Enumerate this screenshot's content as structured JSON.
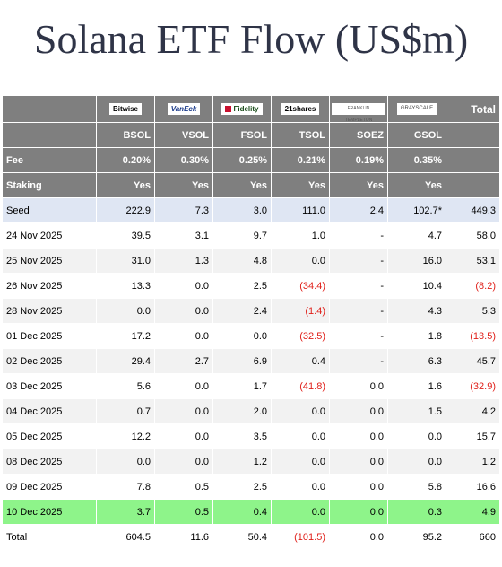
{
  "title": "Solana ETF Flow (US$m)",
  "issuers": [
    {
      "logo": "Bitwise",
      "ticker": "BSOL",
      "fee": "0.20%",
      "staking": "Yes"
    },
    {
      "logo": "VanEck",
      "ticker": "VSOL",
      "fee": "0.30%",
      "staking": "Yes"
    },
    {
      "logo": "Fidelity",
      "ticker": "FSOL",
      "fee": "0.25%",
      "staking": "Yes"
    },
    {
      "logo": "21shares",
      "ticker": "TSOL",
      "fee": "0.21%",
      "staking": "Yes"
    },
    {
      "logo": "FRANKLIN TEMPLETON",
      "ticker": "SOEZ",
      "fee": "0.19%",
      "staking": "Yes"
    },
    {
      "logo": "GRAYSCALE",
      "ticker": "GSOL",
      "fee": "0.35%",
      "staking": "Yes"
    }
  ],
  "header": {
    "total": "Total",
    "fee_label": "Fee",
    "staking_label": "Staking"
  },
  "rows": [
    {
      "label": "Seed",
      "values": [
        "222.9",
        "7.3",
        "3.0",
        "111.0",
        "2.4",
        "102.7*",
        "449.3"
      ]
    },
    {
      "label": "24 Nov 2025",
      "values": [
        "39.5",
        "3.1",
        "9.7",
        "1.0",
        "-",
        "4.7",
        "58.0"
      ]
    },
    {
      "label": "25 Nov 2025",
      "values": [
        "31.0",
        "1.3",
        "4.8",
        "0.0",
        "-",
        "16.0",
        "53.1"
      ]
    },
    {
      "label": "26 Nov 2025",
      "values": [
        "13.3",
        "0.0",
        "2.5",
        "(34.4)",
        "-",
        "10.4",
        "(8.2)"
      ]
    },
    {
      "label": "28 Nov 2025",
      "values": [
        "0.0",
        "0.0",
        "2.4",
        "(1.4)",
        "-",
        "4.3",
        "5.3"
      ]
    },
    {
      "label": "01 Dec 2025",
      "values": [
        "17.2",
        "0.0",
        "0.0",
        "(32.5)",
        "-",
        "1.8",
        "(13.5)"
      ]
    },
    {
      "label": "02 Dec 2025",
      "values": [
        "29.4",
        "2.7",
        "6.9",
        "0.4",
        "-",
        "6.3",
        "45.7"
      ]
    },
    {
      "label": "03 Dec 2025",
      "values": [
        "5.6",
        "0.0",
        "1.7",
        "(41.8)",
        "0.0",
        "1.6",
        "(32.9)"
      ]
    },
    {
      "label": "04 Dec 2025",
      "values": [
        "0.7",
        "0.0",
        "2.0",
        "0.0",
        "0.0",
        "1.5",
        "4.2"
      ]
    },
    {
      "label": "05 Dec 2025",
      "values": [
        "12.2",
        "0.0",
        "3.5",
        "0.0",
        "0.0",
        "0.0",
        "15.7"
      ]
    },
    {
      "label": "08 Dec 2025",
      "values": [
        "0.0",
        "0.0",
        "1.2",
        "0.0",
        "0.0",
        "0.0",
        "1.2"
      ]
    },
    {
      "label": "09 Dec 2025",
      "values": [
        "7.8",
        "0.5",
        "2.5",
        "0.0",
        "0.0",
        "5.8",
        "16.6"
      ]
    },
    {
      "label": "10 Dec 2025",
      "values": [
        "3.7",
        "0.5",
        "0.4",
        "0.0",
        "0.0",
        "0.3",
        "4.9"
      ]
    },
    {
      "label": "Total",
      "values": [
        "604.5",
        "11.6",
        "50.4",
        "(101.5)",
        "0.0",
        "95.2",
        "660"
      ]
    }
  ],
  "colors": {
    "header_bg": "#7f7f7f",
    "seed_total_bg": "#dfe6f3",
    "highlight_bg": "#8ef48a",
    "stripe_bg": "#f2f2f2",
    "negative": "#e0201a",
    "title": "#2f3447"
  }
}
